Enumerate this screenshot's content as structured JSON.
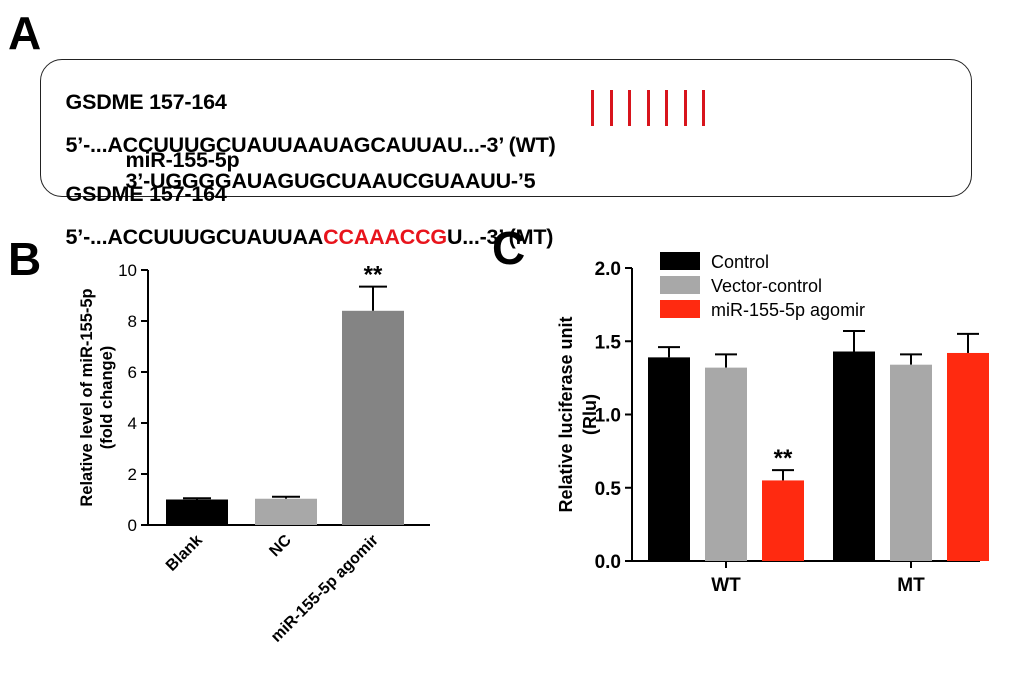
{
  "panels": {
    "a": "A",
    "b": "B",
    "c": "C"
  },
  "sequences": {
    "wt_label": "GSDME 157-164",
    "wt_pre": "5’-...ACCUUUGCUAUUAAU",
    "wt_site": "AGCAUUAU",
    "wt_post": "...-3’ (WT)",
    "mirna_label": "miR-155-5p",
    "mirna_seq": "3’-UGGGGAUAGUGCUAAUCGUAAUU-’5",
    "mt_label": "GSDME 157-164",
    "mt_pre": "5’-...ACCUUUGCUAUUAA",
    "mt_site": "CCAAACCG",
    "mt_post": "U...-3’ (MT)",
    "pair_count": 7,
    "colors": {
      "mutation": "#e8141c",
      "pairing": "#d8141c"
    }
  },
  "chart_data": [
    {
      "id": "B",
      "type": "bar",
      "ylabel": "Relative level of miR-155-5p",
      "ylabel2": "(fold change)",
      "ylim": [
        0,
        10
      ],
      "yticks": [
        "0",
        "2",
        "4",
        "6",
        "8",
        "10"
      ],
      "categories": [
        "Blank",
        "NC",
        "miR-155-5p agomir"
      ],
      "values": [
        1.0,
        1.03,
        8.4
      ],
      "errors": [
        0.05,
        0.08,
        0.95
      ],
      "colors": [
        "#000000",
        "#a8a8a8",
        "#848484"
      ],
      "annotations": [
        "",
        "",
        "**"
      ]
    },
    {
      "id": "C",
      "type": "bar",
      "ylabel": "Relative luciferase unit",
      "ylabel2": "(Rlu)",
      "ylim": [
        0,
        2.0
      ],
      "yticks": [
        "0.0",
        "0.5",
        "1.0",
        "1.5",
        "2.0"
      ],
      "categories": [
        "WT",
        "MT"
      ],
      "series": [
        {
          "name": "Control",
          "color": "#000000",
          "values": [
            1.39,
            1.43
          ],
          "errors": [
            0.07,
            0.14
          ],
          "annotations": [
            "",
            ""
          ]
        },
        {
          "name": "Vector-control",
          "color": "#a8a8a8",
          "values": [
            1.32,
            1.34
          ],
          "errors": [
            0.09,
            0.07
          ],
          "annotations": [
            "",
            ""
          ]
        },
        {
          "name": "miR-155-5p agomir",
          "color": "#ff2a10",
          "values": [
            0.55,
            1.42
          ],
          "errors": [
            0.07,
            0.13
          ],
          "annotations": [
            "**",
            ""
          ]
        }
      ],
      "legend_position": "top-left"
    }
  ]
}
